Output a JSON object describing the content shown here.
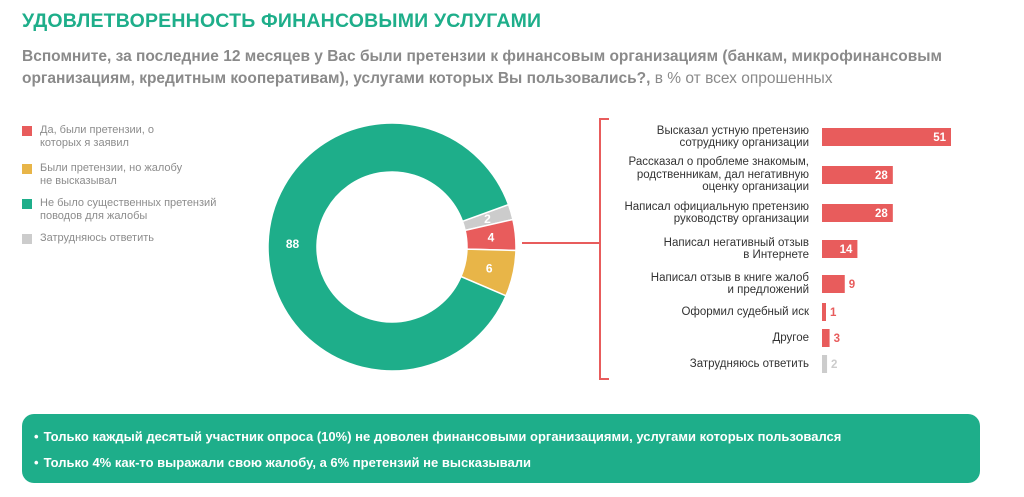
{
  "title": "УДОВЛЕТВОРЕННОСТЬ ФИНАНСОВЫМИ УСЛУГАМИ",
  "question": "Вспомните, за последние 12 месяцев у Вас были претензии к финансовым организациям (банкам, микрофинансовым организациям, кредитным кооперативам), услугами которых Вы пользовались?,",
  "question_unit": " в % от всех опрошенных",
  "colors": {
    "accent": "#1eae8a",
    "red": "#e85c5c",
    "yellow": "#e8b548",
    "gray": "#cccccc"
  },
  "chart_data": [
    {
      "type": "pie",
      "style": "donut",
      "legend": "left",
      "slices": [
        {
          "label": "Да, были претензии, о которых я заявил",
          "value": 4,
          "color": "#e85c5c"
        },
        {
          "label": "Были претензии, но жалобу не высказывал",
          "value": 6,
          "color": "#e8b548"
        },
        {
          "label": "Не было существенных претензий поводов для жалобы",
          "value": 88,
          "color": "#1eae8a"
        },
        {
          "label": "Затрудняюсь ответить",
          "value": 2,
          "color": "#cccccc"
        }
      ]
    },
    {
      "type": "bar",
      "orientation": "horizontal",
      "xlim": [
        0,
        60
      ],
      "categories": [
        "Высказал устную претензию сотруднику организации",
        "Рассказал о проблеме знакомым, родственникам, дал негативную оценку организации",
        "Написал официальную претензию руководству организации",
        "Написал негативный отзыв в Интернете",
        "Написал отзыв в книге жалоб и предложений",
        "Оформил судебный иск",
        "Другое",
        "Затрудняюсь ответить"
      ],
      "values": [
        51,
        28,
        28,
        14,
        9,
        1,
        3,
        2
      ],
      "colors": [
        "#e85c5c",
        "#e85c5c",
        "#e85c5c",
        "#e85c5c",
        "#e85c5c",
        "#e85c5c",
        "#e85c5c",
        "#cccccc"
      ]
    }
  ],
  "summary": [
    "Только каждый десятый участник опроса (10%) не доволен финансовыми организациями, услугами которых пользовался",
    "Только 4% как-то выражали свою жалобу, а 6% претензий не высказывали"
  ]
}
